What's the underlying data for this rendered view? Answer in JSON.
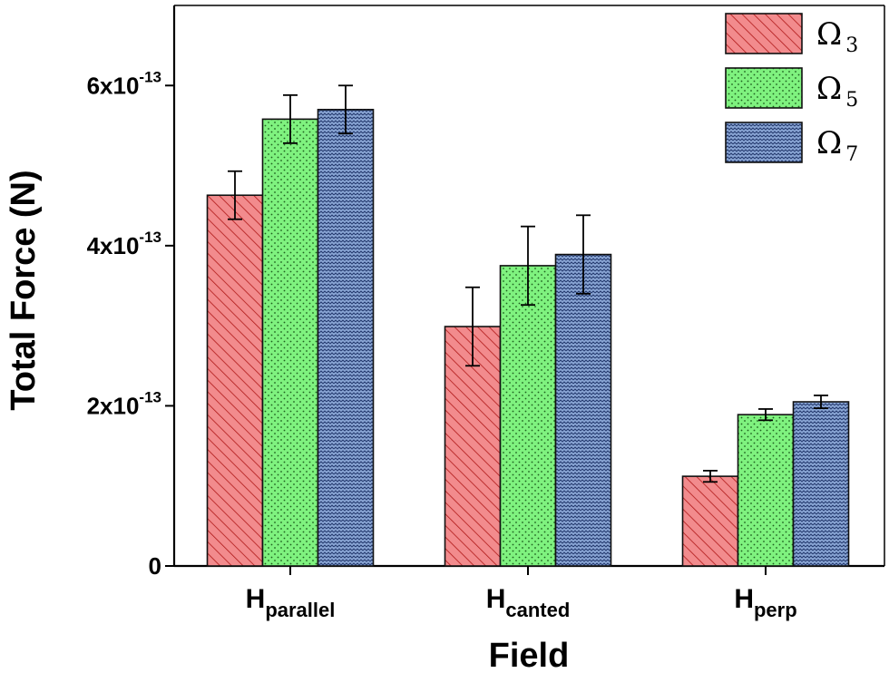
{
  "chart_data": {
    "type": "bar",
    "xlabel": "Field",
    "ylabel": "Total Force (N)",
    "ylim": [
      0,
      7e-13
    ],
    "yticks": [
      {
        "value": 0,
        "mantissa": "0",
        "exponent": ""
      },
      {
        "value": 2e-13,
        "mantissa": "2x10",
        "exponent": "-13"
      },
      {
        "value": 4e-13,
        "mantissa": "4x10",
        "exponent": "-13"
      },
      {
        "value": 6e-13,
        "mantissa": "6x10",
        "exponent": "-13"
      }
    ],
    "categories": [
      {
        "main": "H",
        "sub": "parallel"
      },
      {
        "main": "H",
        "sub": "canted"
      },
      {
        "main": "H",
        "sub": "perp"
      }
    ],
    "series": [
      {
        "name_symbol": "Ω",
        "name_sub": "3",
        "color": "#f28b8d",
        "pattern": "diagonal-hatch",
        "values": [
          4.63e-13,
          2.99e-13,
          1.12e-13
        ],
        "errors": [
          3e-14,
          4.9e-14,
          7e-15
        ]
      },
      {
        "name_symbol": "Ω",
        "name_sub": "5",
        "color": "#7ff27f",
        "pattern": "dots",
        "values": [
          5.58e-13,
          3.75e-13,
          1.89e-13
        ],
        "errors": [
          3e-14,
          4.9e-14,
          7e-15
        ]
      },
      {
        "name_symbol": "Ω",
        "name_sub": "7",
        "color": "#8ba7d6",
        "pattern": "zigzag",
        "values": [
          5.7e-13,
          3.89e-13,
          2.05e-13
        ],
        "errors": [
          3e-14,
          4.9e-14,
          8e-15
        ]
      }
    ],
    "legend_position": "top-right",
    "grid": false
  }
}
